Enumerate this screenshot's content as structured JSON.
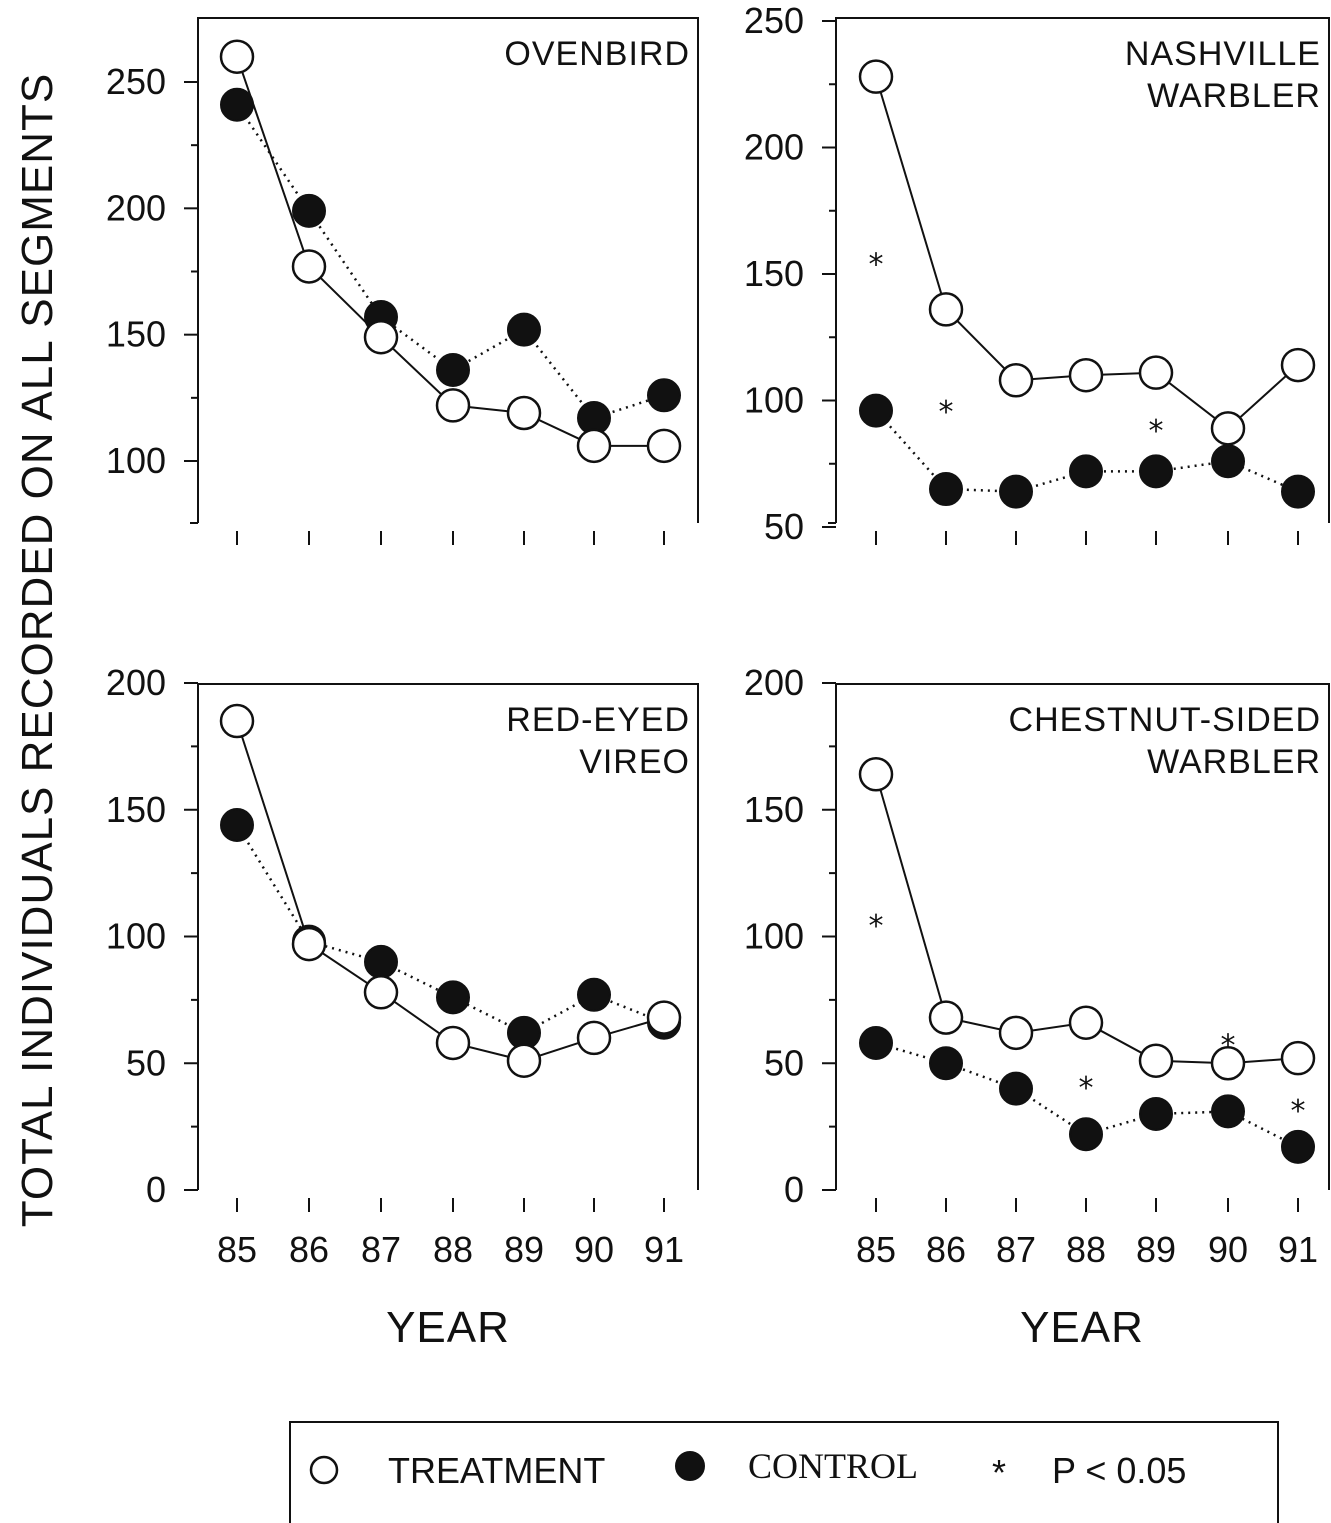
{
  "figure": {
    "y_axis_label": "TOTAL INDIVIDUALS RECORDED ON ALL SEGMENTS",
    "x_axis_label": "YEAR"
  },
  "legend": {
    "treatment": "TREATMENT",
    "control": "CONTROL",
    "significance_marker": "*",
    "significance_label": "P < 0.05"
  },
  "colors": {
    "ink": "#111111",
    "background": "#ffffff",
    "treatment_fill": "#ffffff",
    "control_fill": "#111111"
  },
  "chart_data": [
    {
      "type": "line",
      "title": [
        "OVENBIRD"
      ],
      "xlabel": "",
      "ylabel": "",
      "x": [
        "85",
        "86",
        "87",
        "88",
        "89",
        "90",
        "91"
      ],
      "ylim": [
        75,
        275
      ],
      "y_ticks": [
        100,
        150,
        200,
        250
      ],
      "series": [
        {
          "name": "TREATMENT",
          "values": [
            260,
            177,
            149,
            122,
            119,
            106,
            106
          ]
        },
        {
          "name": "CONTROL",
          "values": [
            241,
            199,
            157,
            136,
            152,
            117,
            126
          ]
        }
      ],
      "significant_years": []
    },
    {
      "type": "line",
      "title": [
        "NASHVILLE",
        "WARBLER"
      ],
      "xlabel": "",
      "ylabel": "",
      "x": [
        "85",
        "86",
        "87",
        "88",
        "89",
        "90",
        "91"
      ],
      "ylim": [
        50,
        250
      ],
      "y_ticks": [
        50,
        100,
        150,
        200,
        250
      ],
      "series": [
        {
          "name": "TREATMENT",
          "values": [
            228,
            136,
            108,
            110,
            111,
            89,
            114
          ]
        },
        {
          "name": "CONTROL",
          "values": [
            96,
            65,
            64,
            72,
            72,
            76,
            64
          ]
        }
      ],
      "significant_years": [
        "85",
        "86",
        "89"
      ]
    },
    {
      "type": "line",
      "title": [
        "RED-EYED",
        "VIREO"
      ],
      "xlabel": "",
      "ylabel": "",
      "x": [
        "85",
        "86",
        "87",
        "88",
        "89",
        "90",
        "91"
      ],
      "ylim": [
        0,
        200
      ],
      "y_ticks": [
        0,
        50,
        100,
        150,
        200
      ],
      "series": [
        {
          "name": "TREATMENT",
          "values": [
            185,
            97,
            78,
            58,
            51,
            60,
            68
          ]
        },
        {
          "name": "CONTROL",
          "values": [
            144,
            98,
            90,
            76,
            62,
            77,
            66
          ]
        }
      ],
      "significant_years": []
    },
    {
      "type": "line",
      "title": [
        "CHESTNUT-SIDED",
        "WARBLER"
      ],
      "xlabel": "",
      "ylabel": "",
      "x": [
        "85",
        "86",
        "87",
        "88",
        "89",
        "90",
        "91"
      ],
      "ylim": [
        0,
        200
      ],
      "y_ticks": [
        0,
        50,
        100,
        150,
        200
      ],
      "series": [
        {
          "name": "TREATMENT",
          "values": [
            164,
            68,
            62,
            66,
            51,
            50,
            52
          ]
        },
        {
          "name": "CONTROL",
          "values": [
            58,
            50,
            40,
            22,
            30,
            31,
            17
          ]
        }
      ],
      "significant_years": [
        "85",
        "88",
        "90",
        "91"
      ]
    }
  ]
}
